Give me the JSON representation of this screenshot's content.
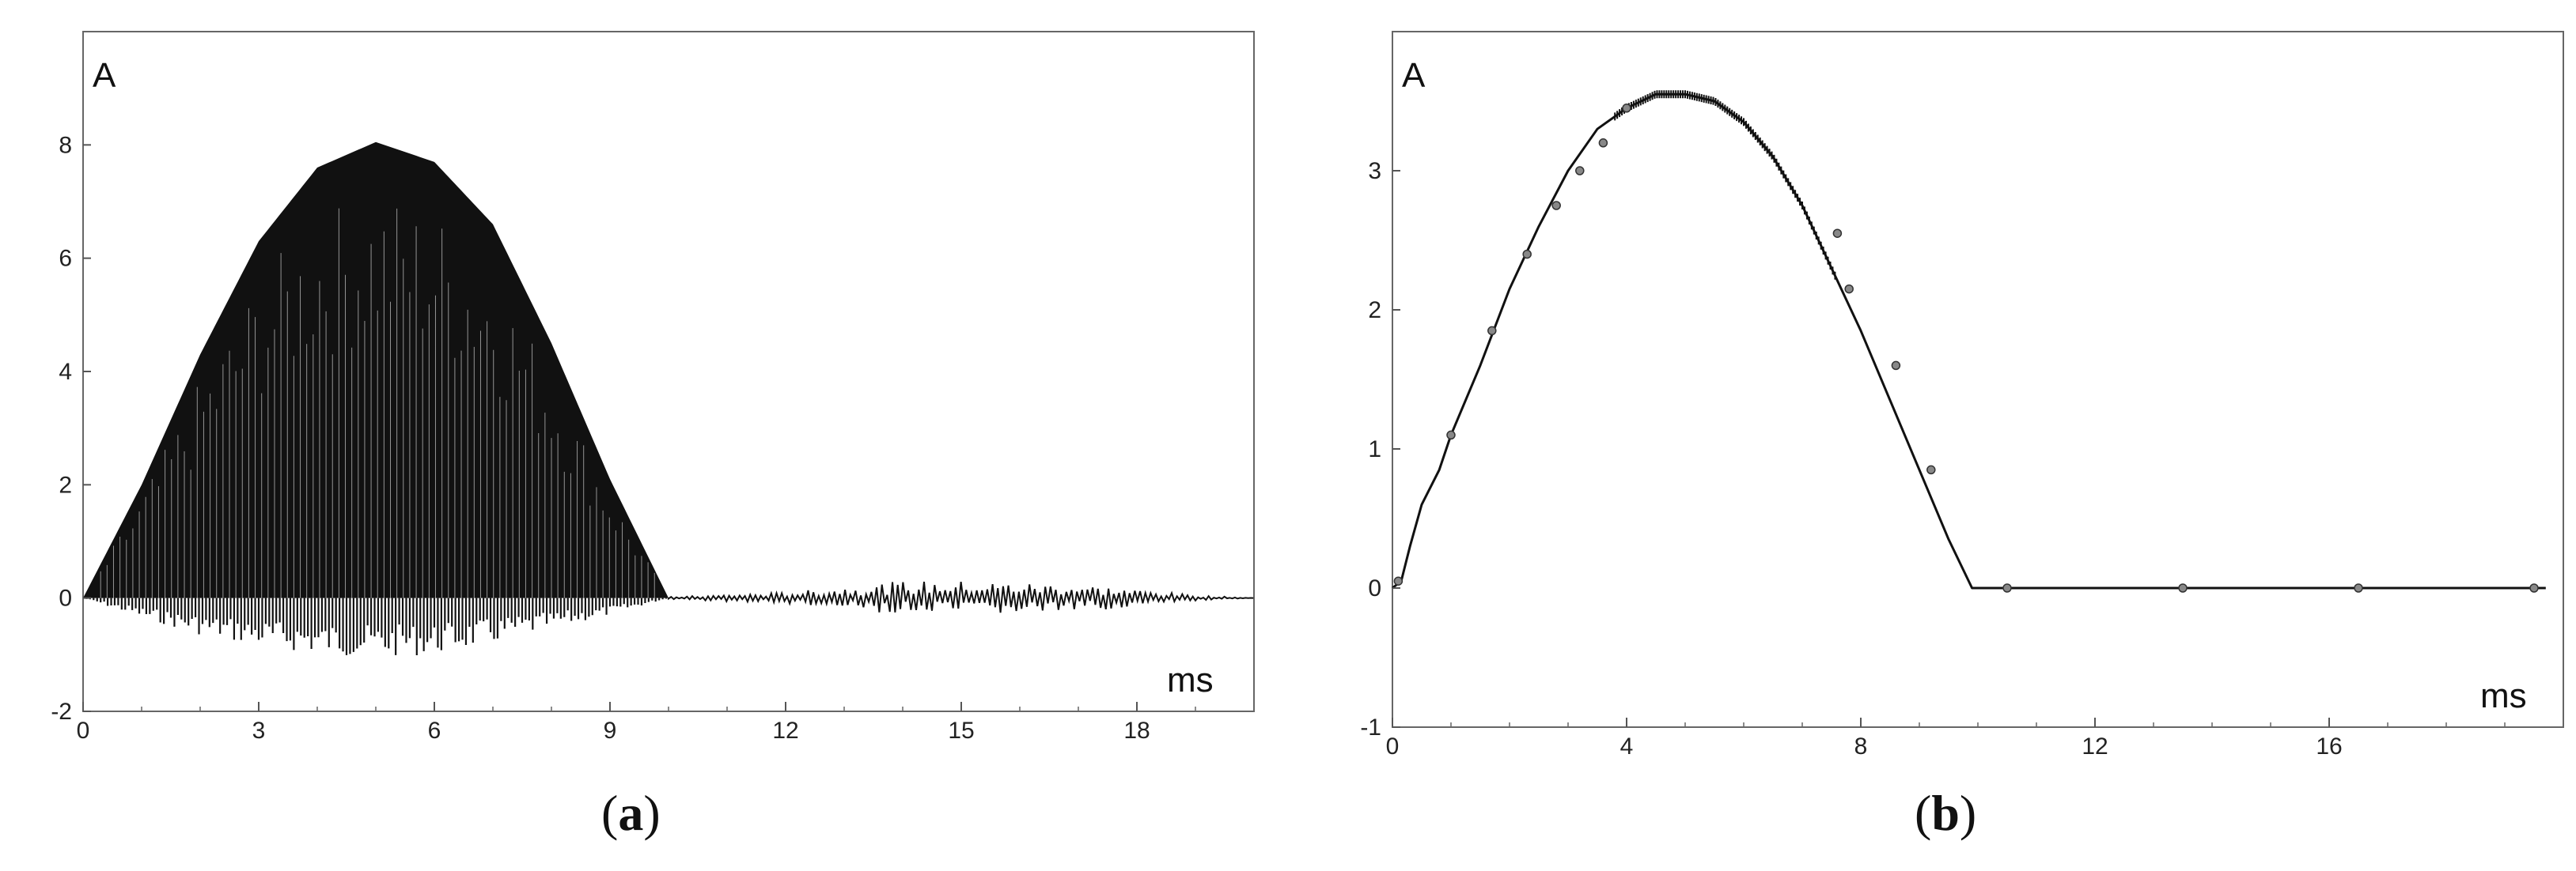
{
  "chart_data": [
    {
      "type": "line",
      "panel": "(a)",
      "panel_letter": "a",
      "xlabel": "ms",
      "ylabel": "A",
      "xlim": [
        0,
        20
      ],
      "ylim": [
        -2,
        10
      ],
      "xticks": [
        0,
        3,
        6,
        9,
        12,
        15,
        18
      ],
      "yticks": [
        -2,
        0,
        2,
        4,
        6,
        8
      ],
      "grid": false,
      "series": [
        {
          "color": "#111111",
          "description_free": true,
          "upper_envelope": {
            "x": [
              0,
              1,
              2,
              3,
              4,
              5,
              6,
              7,
              8,
              9,
              10
            ],
            "y": [
              0,
              2.0,
              4.3,
              6.3,
              7.6,
              8.05,
              7.7,
              6.6,
              4.5,
              2.1,
              0
            ]
          },
          "lower_envelope": {
            "x": [
              0,
              1,
              2,
              3,
              4,
              5,
              6,
              7,
              8,
              9,
              10
            ],
            "y": [
              0,
              -0.35,
              -0.65,
              -0.85,
              -1.0,
              -1.05,
              -1.0,
              -0.8,
              -0.55,
              -0.3,
              0
            ]
          },
          "tail_amplitude": {
            "x": [
              10,
              12,
              14,
              15,
              17,
              19,
              20
            ],
            "y": [
              0.02,
              0.1,
              0.3,
              0.3,
              0.25,
              0.05,
              0.0
            ]
          }
        }
      ]
    },
    {
      "type": "line",
      "panel": "(b)",
      "panel_letter": "b",
      "xlabel": "ms",
      "ylabel": "A",
      "xlim": [
        0,
        20
      ],
      "ylim": [
        -1,
        4
      ],
      "xticks": [
        0,
        4,
        8,
        12,
        16
      ],
      "yticks": [
        -1,
        0,
        1,
        2,
        3
      ],
      "grid": false,
      "series": [
        {
          "color": "#111111",
          "x": [
            0,
            0.15,
            0.3,
            0.5,
            0.8,
            1.0,
            1.5,
            2.0,
            2.5,
            3.0,
            3.5,
            4.0,
            4.5,
            5.0,
            5.5,
            6.0,
            6.5,
            7.0,
            7.5,
            8.0,
            8.5,
            9.0,
            9.5,
            9.9,
            12,
            16,
            19.7
          ],
          "y": [
            0.0,
            0.05,
            0.3,
            0.6,
            0.85,
            1.1,
            1.6,
            2.15,
            2.6,
            3.0,
            3.3,
            3.45,
            3.55,
            3.55,
            3.5,
            3.35,
            3.1,
            2.75,
            2.3,
            1.85,
            1.35,
            0.85,
            0.35,
            0.0,
            0.0,
            0.0,
            0.0
          ],
          "markers": {
            "x": [
              0.1,
              1.0,
              1.7,
              2.3,
              2.8,
              3.2,
              3.6,
              4.0,
              7.6,
              7.8,
              8.6,
              9.2,
              10.5,
              13.5,
              16.5,
              19.5
            ],
            "y": [
              0.05,
              1.1,
              1.85,
              2.4,
              2.75,
              3.0,
              3.2,
              3.45,
              2.55,
              2.15,
              1.6,
              0.85,
              0.0,
              0.0,
              0.0,
              0.0
            ]
          }
        }
      ]
    }
  ]
}
